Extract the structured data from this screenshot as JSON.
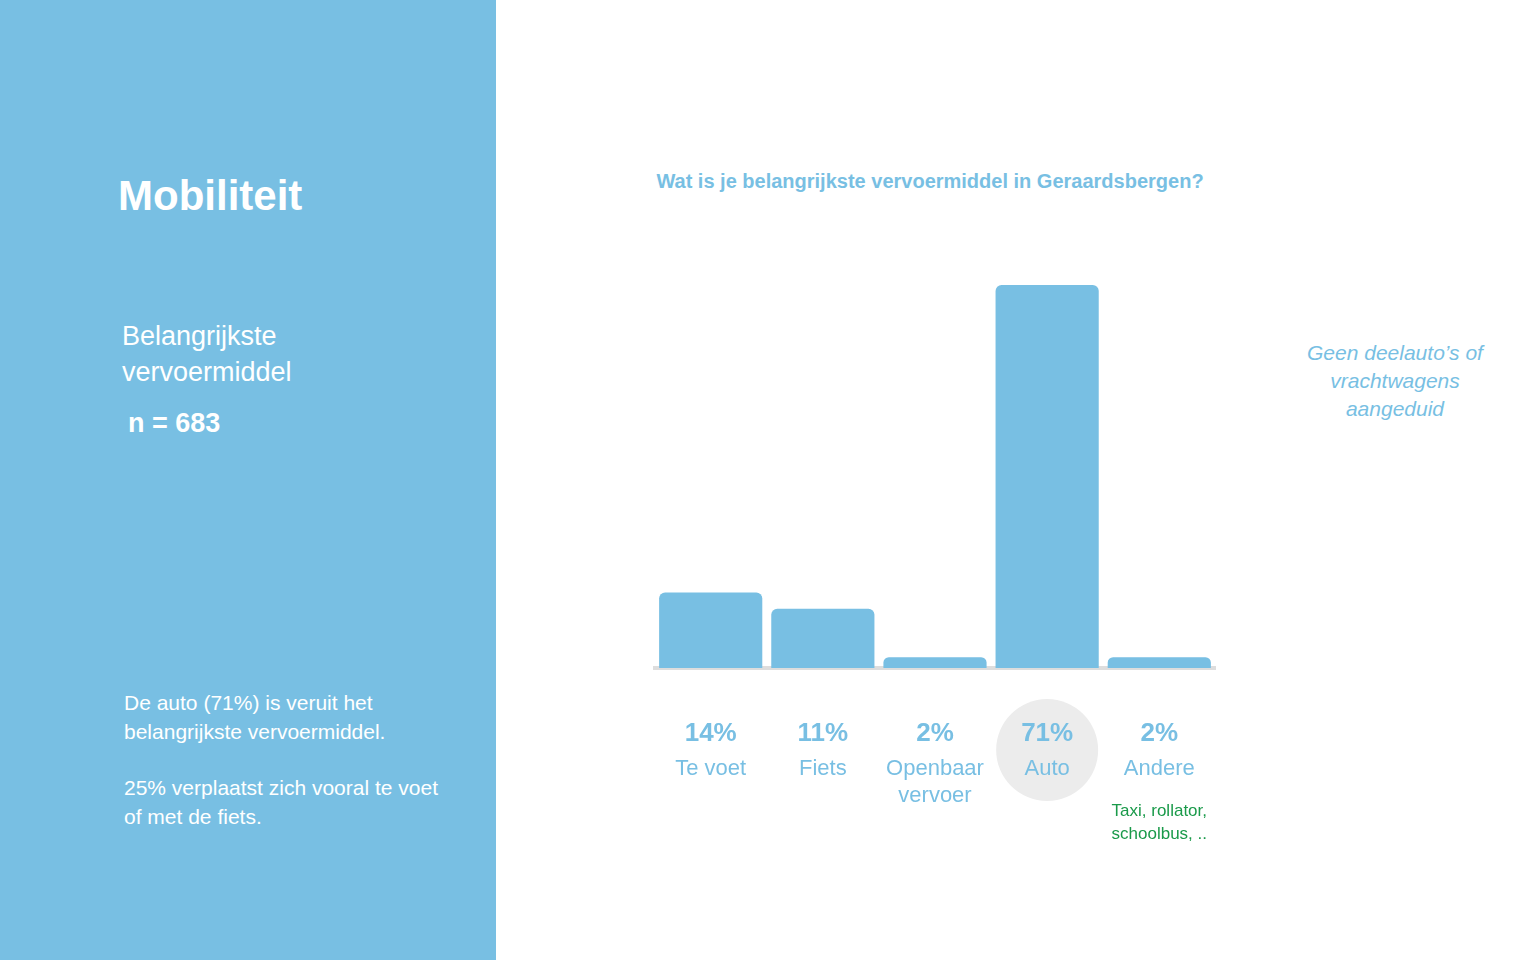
{
  "panel": {
    "title": "Mobiliteit",
    "subtitle": "Belangrijkste vervoermiddel",
    "sample": "n = 683",
    "notes": [
      "De auto (71%) is veruit het belangrijkste vervoermiddel.",
      "25% verplaatst zich vooral te voet of met de fiets."
    ]
  },
  "chart_data": {
    "type": "bar",
    "title": "Wat is je belangrijkste vervoermiddel in Geraardsbergen?",
    "categories": [
      "Te voet",
      "Fiets",
      "Openbaar vervoer",
      "Auto",
      "Andere"
    ],
    "values": [
      14,
      11,
      2,
      71,
      2
    ],
    "value_labels": [
      "14%",
      "11%",
      "2%",
      "71%",
      "2%"
    ],
    "data_labels": true,
    "color": "#78bfe3",
    "ylim": [
      0,
      71
    ],
    "grid": false,
    "tick_labels": "x",
    "annotations": [
      {
        "text": "Geen deelauto’s of vrachtwagens aangeduid"
      },
      {
        "text": "Taxi, rollator, schoolbus, ..",
        "category": "Andere"
      }
    ]
  }
}
